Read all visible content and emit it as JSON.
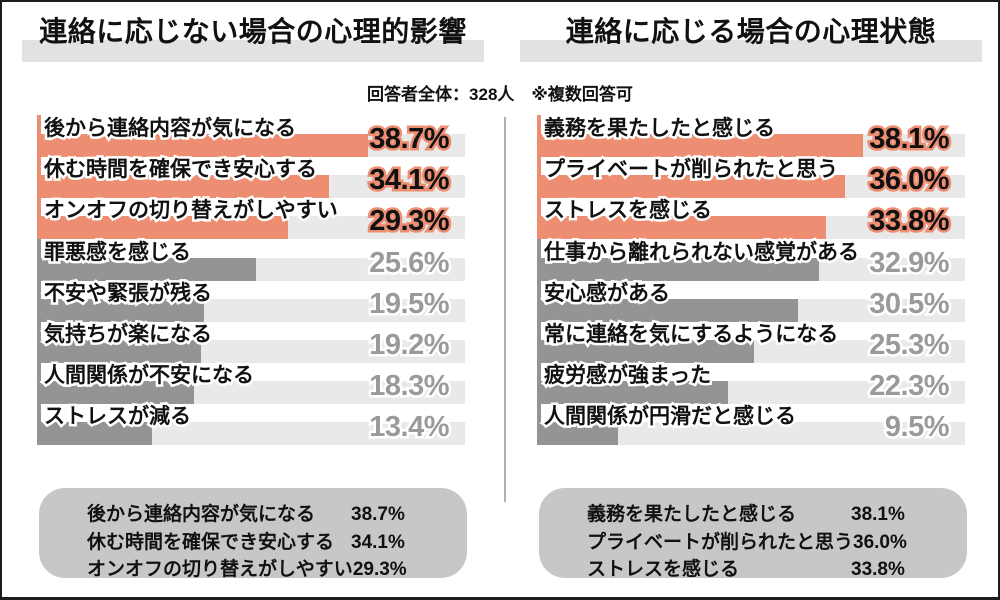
{
  "header": {
    "titles": [
      "連絡に応じない場合の心理的影響",
      "連絡に応じる場合の心理状態"
    ],
    "note": "回答者全体：328人　※複数回答可"
  },
  "colors": {
    "highlight_bar": "#ED8E73",
    "gray_bar": "#949494",
    "track": "#E9E9E9",
    "title_highlight": "#E2E2E2",
    "summary_bg": "#C7C7C7",
    "divider": "#B0B0B0"
  },
  "chart_data": [
    {
      "type": "bar",
      "orientation": "horizontal",
      "title": "連絡に応じない場合の心理的影響",
      "xlim": [
        0,
        50
      ],
      "grid": false,
      "legend": "none",
      "highlighted_top": 3,
      "categories": [
        "後から連絡内容が気になる",
        "休む時間を確保でき安心する",
        "オンオフの切り替えがしやすい",
        "罪悪感を感じる",
        "不安や緊張が残る",
        "気持ちが楽になる",
        "人間関係が不安になる",
        "ストレスが減る"
      ],
      "values": [
        38.7,
        34.1,
        29.3,
        25.6,
        19.5,
        19.2,
        18.3,
        13.4
      ],
      "value_labels": [
        "38.7%",
        "34.1%",
        "29.3%",
        "25.6%",
        "19.5%",
        "19.2%",
        "18.3%",
        "13.4%"
      ]
    },
    {
      "type": "bar",
      "orientation": "horizontal",
      "title": "連絡に応じる場合の心理状態",
      "xlim": [
        0,
        50
      ],
      "grid": false,
      "legend": "none",
      "highlighted_top": 3,
      "categories": [
        "義務を果たしたと感じる",
        "プライベートが削られたと思う",
        "ストレスを感じる",
        "仕事から離れられない感覚がある",
        "安心感がある",
        "常に連絡を気にするようになる",
        "疲労感が強まった",
        "人間関係が円滑だと感じる"
      ],
      "values": [
        38.1,
        36.0,
        33.8,
        32.9,
        30.5,
        25.3,
        22.3,
        9.5
      ],
      "value_labels": [
        "38.1%",
        "36.0%",
        "33.8%",
        "32.9%",
        "30.5%",
        "25.3%",
        "22.3%",
        "9.5%"
      ]
    }
  ],
  "summaries": [
    {
      "items": [
        {
          "label": "後から連絡内容が気になる",
          "value": "38.7%"
        },
        {
          "label": "休む時間を確保でき安心する",
          "value": "34.1%"
        },
        {
          "label": "オンオフの切り替えがしやすい",
          "value": "29.3%"
        }
      ]
    },
    {
      "items": [
        {
          "label": "義務を果たしたと感じる",
          "value": "38.1%"
        },
        {
          "label": "プライベートが削られたと思う",
          "value": "36.0%"
        },
        {
          "label": "ストレスを感じる",
          "value": "33.8%"
        }
      ]
    }
  ]
}
